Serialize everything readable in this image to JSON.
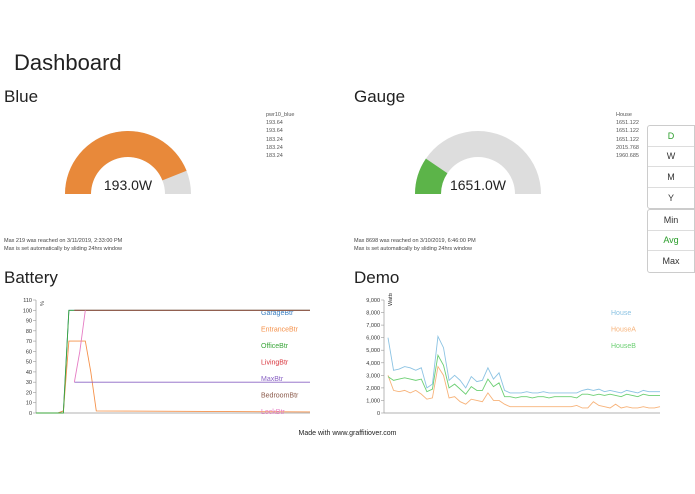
{
  "page": {
    "title": "Dashboard",
    "footer": "Made with www.graffitiover.com"
  },
  "blue": {
    "title": "Blue",
    "value_label": "193.0W",
    "fraction": 0.88,
    "fill_color": "#e8893a",
    "track_color": "#dddddd",
    "list": [
      "pwr10_blue",
      "193.64",
      "193.64",
      "183.24",
      "183.24",
      "183.24"
    ],
    "note_lines": [
      "Max 219 was reached on 3/11/2019, 2:33:00 PM",
      "Max is set automatically by sliding 24hrs window"
    ]
  },
  "gauge": {
    "title": "Gauge",
    "value_label": "1651.0W",
    "fraction": 0.19,
    "fill_color": "#5cb449",
    "track_color": "#dddddd",
    "list": [
      "House",
      "1651.122",
      "1651.122",
      "1651.122",
      "2015.768",
      "1960.685"
    ],
    "note_lines": [
      "Max 8698 was reached on 3/10/2019, 6:46:00 PM",
      "Max is set automatically by sliding 24hrs window"
    ]
  },
  "period_buttons": [
    {
      "label": "D",
      "active": true
    },
    {
      "label": "W",
      "active": false
    },
    {
      "label": "M",
      "active": false
    },
    {
      "label": "Y",
      "active": false
    }
  ],
  "agg_buttons": [
    {
      "label": "Min",
      "active": false
    },
    {
      "label": "Avg",
      "active": true
    },
    {
      "label": "Max",
      "active": false
    }
  ],
  "charts": {
    "battery_title": "Battery",
    "demo_title": "Demo"
  },
  "chart_data": [
    {
      "type": "line",
      "title": "Battery",
      "ylabel": "%",
      "ylim": [
        0,
        110
      ],
      "yticks": [
        0,
        10,
        20,
        30,
        40,
        50,
        60,
        70,
        80,
        90,
        100,
        110
      ],
      "x": [
        0,
        1,
        2,
        3,
        4,
        5,
        6,
        7,
        8,
        9,
        10,
        11,
        12,
        13,
        14,
        15,
        16,
        17,
        18,
        19,
        20,
        21,
        22,
        23,
        24,
        25,
        26,
        27,
        28,
        29,
        30,
        31,
        32,
        33,
        34,
        35,
        36,
        37,
        38,
        39,
        40,
        41,
        42,
        43,
        44,
        45,
        46,
        47,
        48,
        49,
        50
      ],
      "series": [
        {
          "name": "GarageBtr",
          "color": "#3a7fc1",
          "points": [
            [
              0,
              0
            ],
            [
              2,
              0
            ],
            [
              4,
              0
            ],
            [
              5,
              2
            ],
            [
              6,
              100
            ],
            [
              9,
              100
            ],
            [
              50,
              100
            ]
          ]
        },
        {
          "name": "EntranceBtr",
          "color": "#f5914a",
          "points": [
            [
              0,
              0
            ],
            [
              4,
              0
            ],
            [
              5,
              2
            ],
            [
              6,
              70
            ],
            [
              9,
              70
            ],
            [
              10,
              40
            ],
            [
              11,
              2
            ],
            [
              50,
              1
            ]
          ]
        },
        {
          "name": "OfficeBtr",
          "color": "#3aa63a",
          "points": [
            [
              0,
              0
            ],
            [
              5,
              0
            ],
            [
              6,
              100
            ],
            [
              50,
              100
            ]
          ]
        },
        {
          "name": "LivingBtr",
          "color": "#d9363e",
          "points": [
            [
              7,
              100
            ],
            [
              50,
              100
            ]
          ]
        },
        {
          "name": "MaxBtr",
          "color": "#8a63c4",
          "points": [
            [
              7,
              30
            ],
            [
              50,
              30
            ]
          ]
        },
        {
          "name": "BedroomBtr",
          "color": "#8b5a4a",
          "points": [
            [
              7,
              100
            ],
            [
              50,
              100
            ]
          ]
        },
        {
          "name": "LockBtr",
          "color": "#e67cc4",
          "points": [
            [
              7,
              30
            ],
            [
              8,
              60
            ],
            [
              9,
              100
            ]
          ]
        }
      ]
    },
    {
      "type": "line",
      "title": "Demo",
      "ylabel": "Watts",
      "ylim": [
        0,
        9000
      ],
      "yticks": [
        0,
        1000,
        2000,
        3000,
        4000,
        5000,
        6000,
        7000,
        8000,
        9000
      ],
      "series": [
        {
          "name": "House",
          "color": "#8cc3e3",
          "values": [
            6000,
            3400,
            3500,
            3700,
            3600,
            3400,
            3600,
            2000,
            2300,
            6100,
            5200,
            2600,
            3000,
            2600,
            2000,
            2900,
            2500,
            2600,
            3600,
            2700,
            3200,
            1800,
            1600,
            1600,
            1600,
            1700,
            1600,
            1600,
            1700,
            1600,
            1600,
            1600,
            1600,
            1600,
            1600,
            1800,
            1900,
            1800,
            1900,
            1700,
            1800,
            1700,
            1600,
            1800,
            1700,
            1600,
            1800,
            1700,
            1700,
            1700
          ]
        },
        {
          "name": "HouseA",
          "color": "#f7b37a",
          "values": [
            3000,
            1800,
            1700,
            1800,
            1600,
            1800,
            1500,
            1100,
            1200,
            3700,
            3000,
            1200,
            1300,
            900,
            700,
            1100,
            1000,
            900,
            1600,
            1000,
            1000,
            700,
            500,
            500,
            500,
            500,
            500,
            500,
            500,
            500,
            500,
            500,
            500,
            500,
            600,
            400,
            400,
            900,
            600,
            500,
            400,
            700,
            400,
            500,
            400,
            400,
            500,
            400,
            400,
            500
          ]
        },
        {
          "name": "HouseB",
          "color": "#6ccf73",
          "values": [
            2900,
            2600,
            2700,
            2800,
            2700,
            2600,
            2700,
            1700,
            1900,
            4600,
            3800,
            2000,
            2300,
            1900,
            1500,
            2100,
            1800,
            1800,
            2700,
            2100,
            2400,
            1300,
            1300,
            1200,
            1300,
            1300,
            1200,
            1300,
            1300,
            1200,
            1300,
            1300,
            1300,
            1300,
            1200,
            1500,
            1500,
            1400,
            1500,
            1400,
            1500,
            1400,
            1300,
            1500,
            1400,
            1300,
            1500,
            1400,
            1400,
            1400
          ]
        }
      ]
    }
  ]
}
